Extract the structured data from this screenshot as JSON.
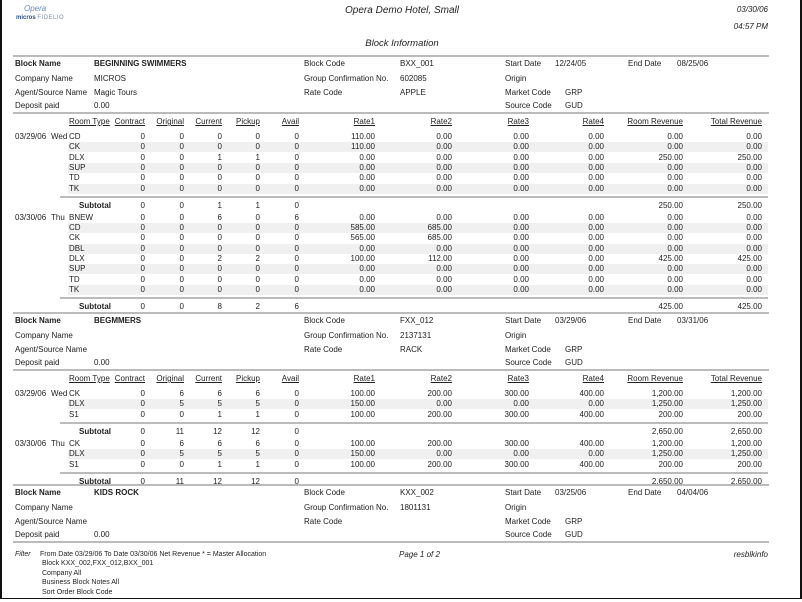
{
  "header": {
    "hotel": "Opera Demo Hotel, Small",
    "date": "03/30/06",
    "time": "04:57 PM",
    "report_title": "Block Information",
    "logo_top": "Opera",
    "logo_bottom": "micros",
    "logo_sub": "FIDELIO"
  },
  "labels": {
    "block_name": "Block Name",
    "company_name": "Company Name",
    "agent_source": "Agent/Source Name",
    "deposit_paid": "Deposit paid",
    "block_code": "Block Code",
    "group_conf": "Group Confirmation No.",
    "rate_code": "Rate Code",
    "start_date": "Start Date",
    "end_date": "End Date",
    "origin": "Origin",
    "market_code": "Market Code",
    "source_code": "Source Code",
    "subtotal": "Subtotal"
  },
  "columns": [
    "Room Type",
    "Contract",
    "Original",
    "Current",
    "Pickup",
    "Avail",
    "Rate1",
    "Rate2",
    "Rate3",
    "Rate4",
    "Room Revenue",
    "Total Revenue"
  ],
  "blocks": [
    {
      "info": {
        "block_name": "BEGINNING SWIMMERS",
        "company_name": "MICROS",
        "agent_source": "Magic Tours",
        "deposit_paid": "0.00",
        "block_code": "BXX_001",
        "group_conf": "602085",
        "rate_code": "APPLE",
        "start_date": "12/24/05",
        "end_date": "08/25/06",
        "origin": "",
        "market_code": "GRP",
        "source_code": "GUD"
      },
      "days": [
        {
          "date": "03/29/06",
          "day": "Wed",
          "rows": [
            [
              "CD",
              "0",
              "0",
              "0",
              "0",
              "0",
              "110.00",
              "0.00",
              "0.00",
              "0.00",
              "0.00",
              "0.00"
            ],
            [
              "CK",
              "0",
              "0",
              "0",
              "0",
              "0",
              "110.00",
              "0.00",
              "0.00",
              "0.00",
              "0.00",
              "0.00"
            ],
            [
              "DLX",
              "0",
              "0",
              "1",
              "1",
              "0",
              "0.00",
              "0.00",
              "0.00",
              "0.00",
              "250.00",
              "250.00"
            ],
            [
              "SUP",
              "0",
              "0",
              "0",
              "0",
              "0",
              "0.00",
              "0.00",
              "0.00",
              "0.00",
              "0.00",
              "0.00"
            ],
            [
              "TD",
              "0",
              "0",
              "0",
              "0",
              "0",
              "0.00",
              "0.00",
              "0.00",
              "0.00",
              "0.00",
              "0.00"
            ],
            [
              "TK",
              "0",
              "0",
              "0",
              "0",
              "0",
              "0.00",
              "0.00",
              "0.00",
              "0.00",
              "0.00",
              "0.00"
            ]
          ],
          "subtotal": [
            "",
            "0",
            "0",
            "1",
            "1",
            "0",
            "",
            "",
            "",
            "",
            "250.00",
            "250.00"
          ]
        },
        {
          "date": "03/30/06",
          "day": "Thu",
          "rows": [
            [
              "BNEW",
              "0",
              "0",
              "6",
              "0",
              "6",
              "0.00",
              "0.00",
              "0.00",
              "0.00",
              "0.00",
              "0.00"
            ],
            [
              "CD",
              "0",
              "0",
              "0",
              "0",
              "0",
              "585.00",
              "685.00",
              "0.00",
              "0.00",
              "0.00",
              "0.00"
            ],
            [
              "CK",
              "0",
              "0",
              "0",
              "0",
              "0",
              "565.00",
              "685.00",
              "0.00",
              "0.00",
              "0.00",
              "0.00"
            ],
            [
              "DBL",
              "0",
              "0",
              "0",
              "0",
              "0",
              "0.00",
              "0.00",
              "0.00",
              "0.00",
              "0.00",
              "0.00"
            ],
            [
              "DLX",
              "0",
              "0",
              "2",
              "2",
              "0",
              "100.00",
              "112.00",
              "0.00",
              "0.00",
              "425.00",
              "425.00"
            ],
            [
              "SUP",
              "0",
              "0",
              "0",
              "0",
              "0",
              "0.00",
              "0.00",
              "0.00",
              "0.00",
              "0.00",
              "0.00"
            ],
            [
              "TD",
              "0",
              "0",
              "0",
              "0",
              "0",
              "0.00",
              "0.00",
              "0.00",
              "0.00",
              "0.00",
              "0.00"
            ],
            [
              "TK",
              "0",
              "0",
              "0",
              "0",
              "0",
              "0.00",
              "0.00",
              "0.00",
              "0.00",
              "0.00",
              "0.00"
            ]
          ],
          "subtotal": [
            "",
            "0",
            "0",
            "8",
            "2",
            "6",
            "",
            "",
            "",
            "",
            "425.00",
            "425.00"
          ]
        }
      ]
    },
    {
      "info": {
        "block_name": "BEGMMERS",
        "company_name": "",
        "agent_source": "",
        "deposit_paid": "0.00",
        "block_code": "FXX_012",
        "group_conf": "2137131",
        "rate_code": "RACK",
        "start_date": "03/29/06",
        "end_date": "03/31/06",
        "origin": "",
        "market_code": "GRP",
        "source_code": "GUD"
      },
      "days": [
        {
          "date": "03/29/06",
          "day": "Wed",
          "rows": [
            [
              "CK",
              "0",
              "6",
              "6",
              "6",
              "0",
              "100.00",
              "200.00",
              "300.00",
              "400.00",
              "1,200.00",
              "1,200.00"
            ],
            [
              "DLX",
              "0",
              "5",
              "5",
              "5",
              "0",
              "150.00",
              "0.00",
              "0.00",
              "0.00",
              "1,250.00",
              "1,250.00"
            ],
            [
              "S1",
              "0",
              "0",
              "1",
              "1",
              "0",
              "100.00",
              "200.00",
              "300.00",
              "400.00",
              "200.00",
              "200.00"
            ]
          ],
          "subtotal": [
            "",
            "0",
            "11",
            "12",
            "12",
            "0",
            "",
            "",
            "",
            "",
            "2,650.00",
            "2,650.00"
          ]
        },
        {
          "date": "03/30/06",
          "day": "Thu",
          "rows": [
            [
              "CK",
              "0",
              "6",
              "6",
              "6",
              "0",
              "100.00",
              "200.00",
              "300.00",
              "400.00",
              "1,200.00",
              "1,200.00"
            ],
            [
              "DLX",
              "0",
              "5",
              "5",
              "5",
              "0",
              "150.00",
              "0.00",
              "0.00",
              "0.00",
              "1,250.00",
              "1,250.00"
            ],
            [
              "S1",
              "0",
              "0",
              "1",
              "1",
              "0",
              "100.00",
              "200.00",
              "300.00",
              "400.00",
              "200.00",
              "200.00"
            ]
          ],
          "subtotal": [
            "",
            "0",
            "11",
            "12",
            "12",
            "0",
            "",
            "",
            "",
            "",
            "2,650.00",
            "2,650.00"
          ]
        }
      ]
    },
    {
      "info": {
        "block_name": "KIDS ROCK",
        "company_name": "",
        "agent_source": "",
        "deposit_paid": "0.00",
        "block_code": "KXX_002",
        "group_conf": "1801131",
        "rate_code": "",
        "start_date": "03/25/06",
        "end_date": "04/04/06",
        "origin": "",
        "market_code": "GRP",
        "source_code": "GUD"
      },
      "days": []
    }
  ],
  "footer": {
    "filter_label": "Filter",
    "filter_line1": "From Date 03/29/06   To Date 03/30/06   Net Revenue   * = Master Allocation",
    "filter_lines": [
      "Block KXX_002,FXX_012,BXX_001",
      "Company All",
      "Business Block Notes All",
      "Sort Order Block Code"
    ],
    "page": "Page 1 of 2",
    "report_id": "resblkinfo"
  },
  "colors": {
    "rule": "#bbbbbb",
    "row_shade": "#f0f0f0",
    "logo": "#2a4f8f"
  }
}
